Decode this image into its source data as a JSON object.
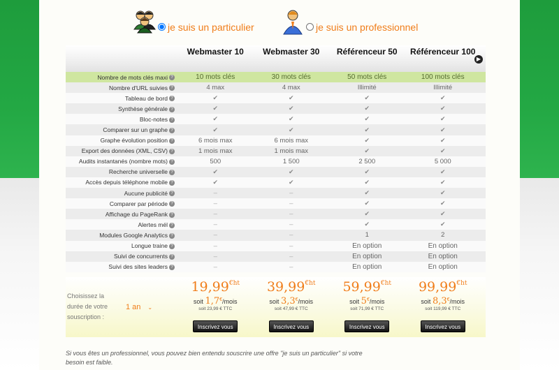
{
  "selector": {
    "particulier_label": "je suis un particulier",
    "professionnel_label": "je suis un professionnel",
    "selected": "particulier"
  },
  "plans": [
    {
      "name": "Webmaster 10",
      "price": "19,99",
      "unit": "€ht",
      "monthly": "1,7",
      "monthly_unit": "€",
      "per": "/mois",
      "soit": "soit",
      "ttc": "soit 23,99 € TTC",
      "button": "Inscrivez vous"
    },
    {
      "name": "Webmaster 30",
      "price": "39,99",
      "unit": "€ht",
      "monthly": "3,3",
      "monthly_unit": "€",
      "per": "/mois",
      "soit": "soit",
      "ttc": "soit 47,99 € TTC",
      "button": "Inscrivez vous"
    },
    {
      "name": "Référenceur 50",
      "price": "59,99",
      "unit": "€ht",
      "monthly": "5",
      "monthly_unit": "€",
      "per": "/mois",
      "soit": "soit",
      "ttc": "soit 71,99 € TTC",
      "button": "Inscrivez vous"
    },
    {
      "name": "Référenceur 100",
      "price": "99,99",
      "unit": "€ht",
      "monthly": "8,3",
      "monthly_unit": "€",
      "per": "/mois",
      "soit": "soit",
      "ttc": "soit 119,99 € TTC",
      "button": "Inscrivez vous"
    }
  ],
  "rows": [
    {
      "label": "Nombre de mots clés maxi",
      "values": [
        "10 mots clés",
        "30 mots clés",
        "50 mots clés",
        "100 mots clés"
      ]
    },
    {
      "label": "Nombre d'URL suivies",
      "values": [
        "4 max",
        "4 max",
        "Illimité",
        "Illimité"
      ]
    },
    {
      "label": "Tableau de bord",
      "values": [
        "✔",
        "✔",
        "✔",
        "✔"
      ]
    },
    {
      "label": "Synthèse générale",
      "values": [
        "✔",
        "✔",
        "✔",
        "✔"
      ]
    },
    {
      "label": "Bloc-notes",
      "values": [
        "✔",
        "✔",
        "✔",
        "✔"
      ]
    },
    {
      "label": "Comparer sur un graphe",
      "values": [
        "✔",
        "✔",
        "✔",
        "✔"
      ]
    },
    {
      "label": "Graphe évolution position",
      "values": [
        "6 mois max",
        "6 mois max",
        "✔",
        "✔"
      ]
    },
    {
      "label": "Export des données (XML, CSV)",
      "values": [
        "1 mois max",
        "1 mois max",
        "✔",
        "✔"
      ]
    },
    {
      "label": "Audits instantanés (nombre mots)",
      "values": [
        "500",
        "1 500",
        "2 500",
        "5 000"
      ]
    },
    {
      "label": "Recherche universelle",
      "values": [
        "✔",
        "✔",
        "✔",
        "✔"
      ]
    },
    {
      "label": "Accès depuis téléphone mobile",
      "values": [
        "✔",
        "✔",
        "✔",
        "✔"
      ]
    },
    {
      "label": "Aucune publicité",
      "values": [
        "–",
        "–",
        "✔",
        "✔"
      ]
    },
    {
      "label": "Comparer par période",
      "values": [
        "–",
        "–",
        "✔",
        "✔"
      ]
    },
    {
      "label": "Affichage du PageRank",
      "values": [
        "–",
        "–",
        "✔",
        "✔"
      ]
    },
    {
      "label": "Alertes mél",
      "values": [
        "–",
        "–",
        "✔",
        "✔"
      ]
    },
    {
      "label": "Modules Google Analytics",
      "values": [
        "–",
        "–",
        "1",
        "2"
      ]
    },
    {
      "label": "Longue traine",
      "values": [
        "–",
        "–",
        "En option",
        "En option"
      ]
    },
    {
      "label": "Suivi de concurrents",
      "values": [
        "–",
        "–",
        "En option",
        "En option"
      ]
    },
    {
      "label": "Suivi des sites leaders",
      "values": [
        "–",
        "–",
        "En option",
        "En option"
      ]
    }
  ],
  "duration": {
    "label": "Choisissez la durée de votre souscription :",
    "value": "1 an"
  },
  "note": "Si vous êtes un professionnel, vous pouvez bien entendu souscrire une offre \"je suis un particulier\" si votre besoin est faible.",
  "colors": {
    "accent": "#f07d1a",
    "green_bg": "#23a844",
    "highlight_row": "#cfe6a0"
  }
}
